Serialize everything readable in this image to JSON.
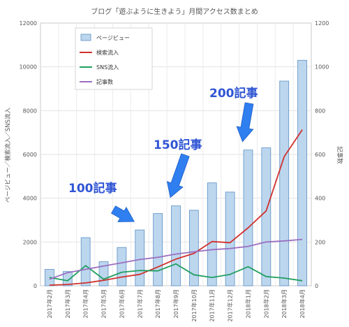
{
  "chart_data": {
    "type": "bar",
    "title": "ブログ「遊ぶように生きよう」月間アクセス数まとめ",
    "ylabel": "ページビュー／検索流入／SNS流入",
    "ylabel_right": "記事数",
    "ylim": [
      0,
      12000
    ],
    "yticks": [
      0,
      2000,
      4000,
      6000,
      8000,
      10000,
      12000
    ],
    "ylim_right": [
      0,
      1200
    ],
    "yticks_right": [
      0,
      200,
      400,
      600,
      800,
      1000,
      1200
    ],
    "grid": true,
    "legend_position": "top-left",
    "categories": [
      "2017年2月",
      "2017年3月",
      "2017年4月",
      "2017年5月",
      "2017年6月",
      "2017年7月",
      "2017年8月",
      "2017年9月",
      "2017年10月",
      "2017年11月",
      "2017年12月",
      "2018年1月",
      "2018年2月",
      "2018年3月",
      "2018年4月"
    ],
    "series": [
      {
        "name": "ページビュー",
        "type": "bar",
        "axis": "left",
        "color": "#bcd6ee",
        "values": [
          750,
          650,
          2200,
          1100,
          1750,
          2550,
          3300,
          3650,
          3450,
          4700,
          4280,
          6200,
          6300,
          9350,
          10300
        ]
      },
      {
        "name": "検索流入",
        "type": "line",
        "axis": "left",
        "color": "#d0312d",
        "values": [
          30,
          60,
          130,
          250,
          400,
          520,
          860,
          1220,
          1480,
          2020,
          1970,
          2650,
          3420,
          5900,
          7130
        ]
      },
      {
        "name": "SNS流入",
        "type": "line",
        "axis": "left",
        "color": "#20a060",
        "values": [
          380,
          230,
          920,
          300,
          620,
          700,
          680,
          1000,
          500,
          380,
          520,
          870,
          420,
          350,
          230
        ]
      },
      {
        "name": "記事数",
        "type": "line",
        "axis": "right",
        "color": "#9b6fc0",
        "values": [
          30,
          60,
          75,
          90,
          105,
          120,
          130,
          145,
          155,
          165,
          170,
          180,
          200,
          205,
          212
        ]
      }
    ],
    "annotations": [
      {
        "text": "100記事"
      },
      {
        "text": "150記事"
      },
      {
        "text": "200記事"
      }
    ]
  }
}
